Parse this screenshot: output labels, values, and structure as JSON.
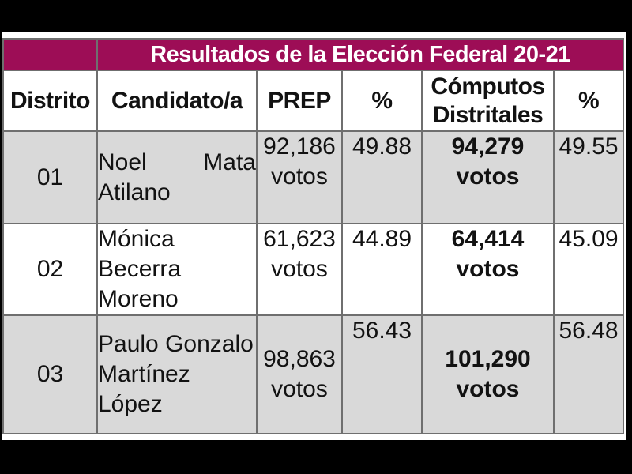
{
  "table": {
    "title": "Resultados de la Elección Federal 20-21",
    "columns": [
      "Distrito",
      "Candidato/a",
      "PREP",
      "%",
      "Cómputos Distritales",
      "%"
    ],
    "votes_label": "votos",
    "rows": [
      {
        "distrito": "01",
        "candidato": "Noel Mata Atilano",
        "prep_value": "92,186",
        "prep_pct": "49.88",
        "computos_value": "94,279",
        "computos_pct": "49.55"
      },
      {
        "distrito": "02",
        "candidato": "Mónica Becerra Moreno",
        "prep_value": "61,623",
        "prep_pct": "44.89",
        "computos_value": "64,414",
        "computos_pct": "45.09"
      },
      {
        "distrito": "03",
        "candidato": "Paulo Gonzalo Martínez López",
        "prep_value": "98,863",
        "prep_pct": "56.43",
        "computos_value": "101,290",
        "computos_pct": "56.48"
      }
    ]
  },
  "colors": {
    "accent_magenta": "#9d0d56",
    "row_gray": "#d9d9d9",
    "row_white": "#ffffff",
    "border_gray": "#6f6f6f",
    "title_text": "#ffffff",
    "body_text": "#121212",
    "frame_black": "#000000"
  },
  "chart_data": {
    "type": "table",
    "title": "Resultados de la Elección Federal 20-21",
    "columns": [
      "Distrito",
      "Candidato/a",
      "PREP",
      "%",
      "Cómputos Distritales",
      "%"
    ],
    "rows": [
      [
        "01",
        "Noel Mata Atilano",
        "92,186 votos",
        "49.88",
        "94,279 votos",
        "49.55"
      ],
      [
        "02",
        "Mónica Becerra Moreno",
        "61,623 votos",
        "44.89",
        "64,414 votos",
        "45.09"
      ],
      [
        "03",
        "Paulo Gonzalo Martínez López",
        "98,863 votos",
        "56.43",
        "101,290 votos",
        "56.48"
      ]
    ],
    "notes": "PREP = preliminary count with percentage; Cómputos Distritales = district tally (bold) with percentage"
  }
}
